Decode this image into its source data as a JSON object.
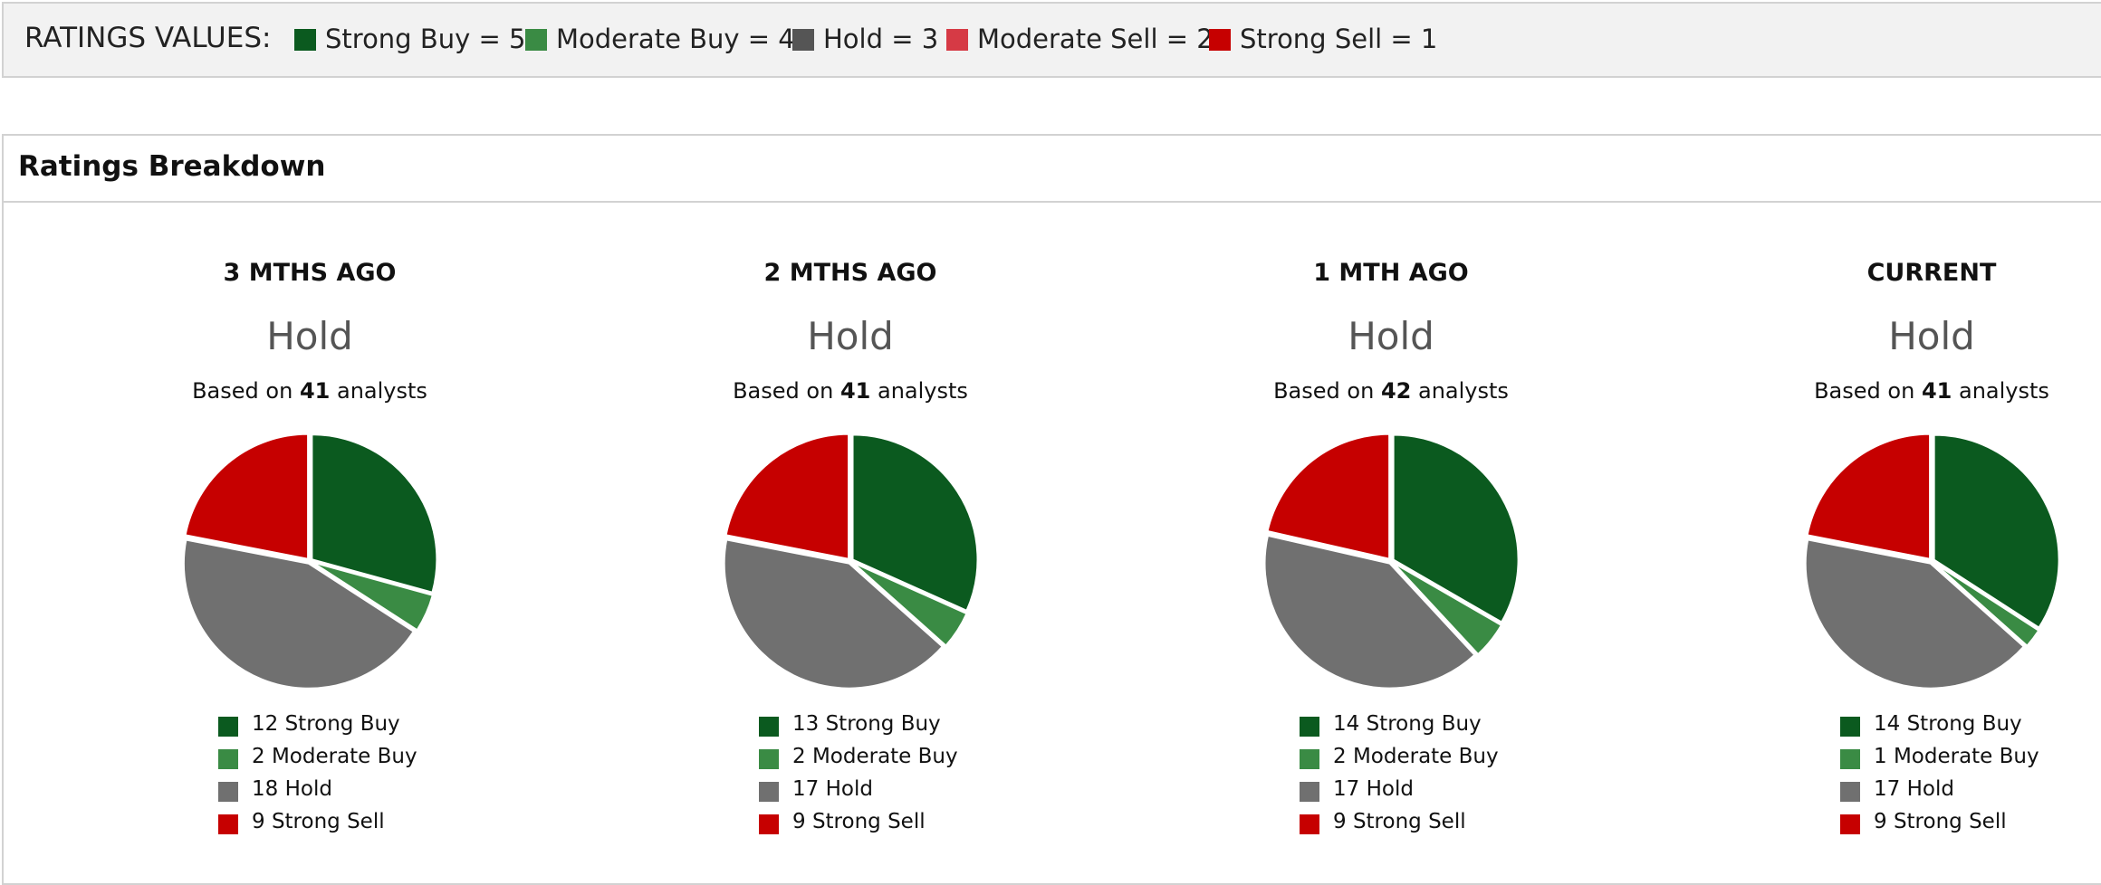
{
  "ratings_values": {
    "title": "RATINGS VALUES:",
    "items": [
      {
        "label": "Strong Buy = 5",
        "color": "#0b5a1f"
      },
      {
        "label": "Moderate Buy = 4",
        "color": "#3a8b44"
      },
      {
        "label": "Hold = 3",
        "color": "#555555"
      },
      {
        "label": "Moderate Sell = 2",
        "color": "#d63a45"
      },
      {
        "label": "Strong Sell = 1",
        "color": "#c60000"
      }
    ]
  },
  "breakdown": {
    "title": "Ratings Breakdown"
  },
  "chart_data": [
    {
      "type": "pie",
      "title": "3 MTHS AGO",
      "consensus": "Hold",
      "based_on_prefix": "Based on",
      "analysts": "41",
      "based_on_suffix": "analysts",
      "slices": [
        {
          "count": 12,
          "name": "Strong Buy",
          "legend": "12 Strong Buy",
          "color": "#0b5a1f"
        },
        {
          "count": 2,
          "name": "Moderate Buy",
          "legend": "2 Moderate Buy",
          "color": "#3a8b44"
        },
        {
          "count": 18,
          "name": "Hold",
          "legend": "18 Hold",
          "color": "#707070"
        },
        {
          "count": 9,
          "name": "Strong Sell",
          "legend": "9 Strong Sell",
          "color": "#c60000"
        }
      ]
    },
    {
      "type": "pie",
      "title": "2 MTHS AGO",
      "consensus": "Hold",
      "based_on_prefix": "Based on",
      "analysts": "41",
      "based_on_suffix": "analysts",
      "slices": [
        {
          "count": 13,
          "name": "Strong Buy",
          "legend": "13 Strong Buy",
          "color": "#0b5a1f"
        },
        {
          "count": 2,
          "name": "Moderate Buy",
          "legend": "2 Moderate Buy",
          "color": "#3a8b44"
        },
        {
          "count": 17,
          "name": "Hold",
          "legend": "17 Hold",
          "color": "#707070"
        },
        {
          "count": 9,
          "name": "Strong Sell",
          "legend": "9 Strong Sell",
          "color": "#c60000"
        }
      ]
    },
    {
      "type": "pie",
      "title": "1 MTH AGO",
      "consensus": "Hold",
      "based_on_prefix": "Based on",
      "analysts": "42",
      "based_on_suffix": "analysts",
      "slices": [
        {
          "count": 14,
          "name": "Strong Buy",
          "legend": "14 Strong Buy",
          "color": "#0b5a1f"
        },
        {
          "count": 2,
          "name": "Moderate Buy",
          "legend": "2 Moderate Buy",
          "color": "#3a8b44"
        },
        {
          "count": 17,
          "name": "Hold",
          "legend": "17 Hold",
          "color": "#707070"
        },
        {
          "count": 9,
          "name": "Strong Sell",
          "legend": "9 Strong Sell",
          "color": "#c60000"
        }
      ]
    },
    {
      "type": "pie",
      "title": "CURRENT",
      "consensus": "Hold",
      "based_on_prefix": "Based on",
      "analysts": "41",
      "based_on_suffix": "analysts",
      "slices": [
        {
          "count": 14,
          "name": "Strong Buy",
          "legend": "14 Strong Buy",
          "color": "#0b5a1f"
        },
        {
          "count": 1,
          "name": "Moderate Buy",
          "legend": "1 Moderate Buy",
          "color": "#3a8b44"
        },
        {
          "count": 17,
          "name": "Hold",
          "legend": "17 Hold",
          "color": "#707070"
        },
        {
          "count": 9,
          "name": "Strong Sell",
          "legend": "9 Strong Sell",
          "color": "#c60000"
        }
      ]
    }
  ]
}
